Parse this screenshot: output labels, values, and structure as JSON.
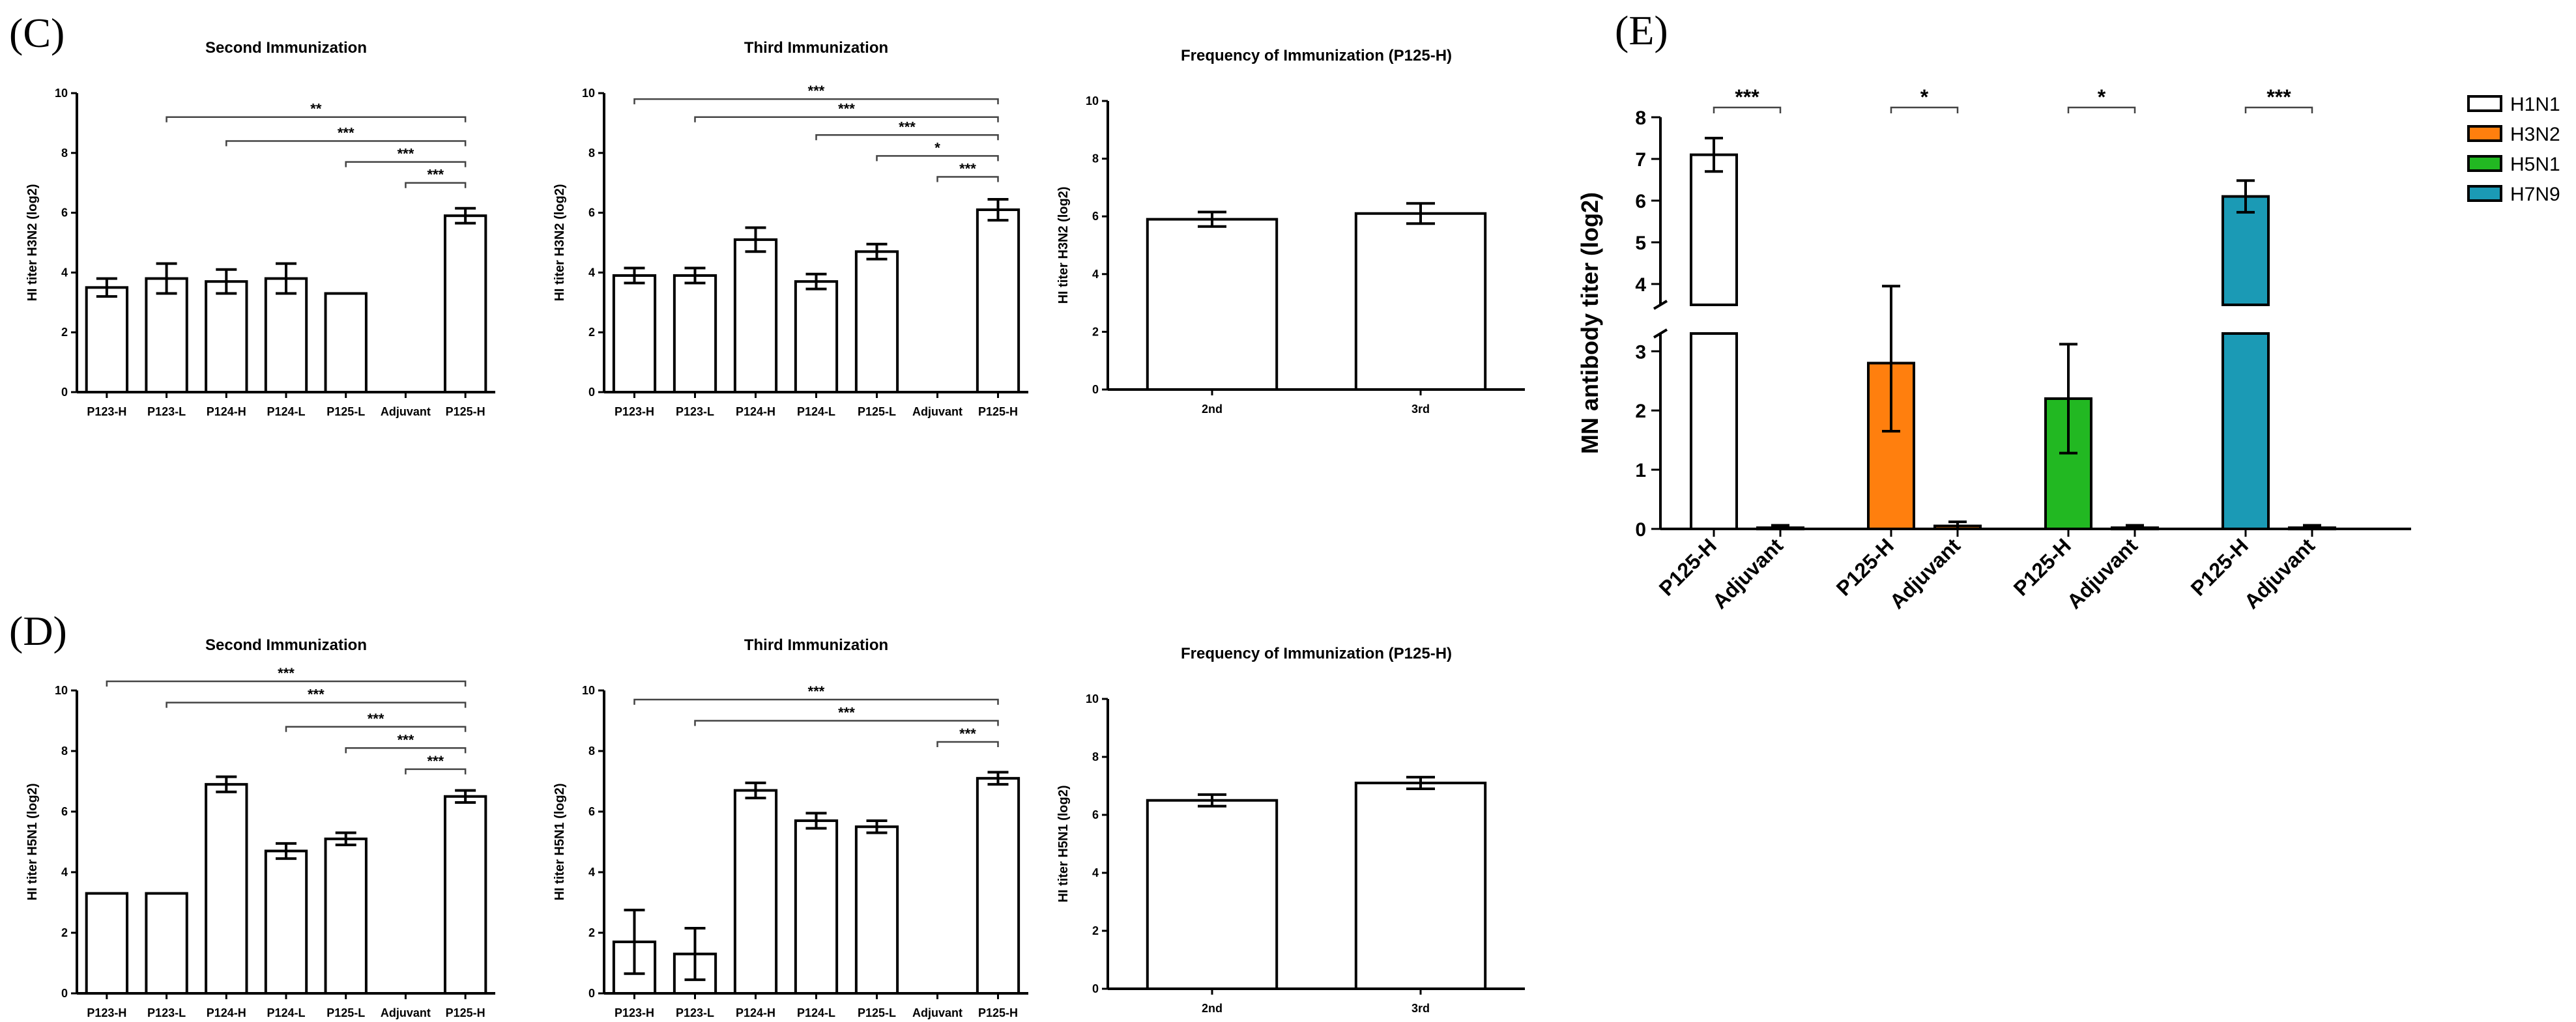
{
  "panel_labels": {
    "c": "(C)",
    "d": "(D)",
    "e": "(E)"
  },
  "chart_data": [
    {
      "id": "c1",
      "type": "bar",
      "title": "Second Immunization",
      "ylabel": "HI titer H3N2 (log2)",
      "ylim": [
        0,
        10
      ],
      "yticks": [
        0,
        2,
        4,
        6,
        8,
        10
      ],
      "categories": [
        "P123-H",
        "P123-L",
        "P124-H",
        "P124-L",
        "P125-L",
        "Adjuvant",
        "P125-H"
      ],
      "values": [
        3.5,
        3.8,
        3.7,
        3.8,
        3.3,
        0,
        5.9
      ],
      "errors": [
        0.3,
        0.5,
        0.4,
        0.5,
        0,
        0,
        0.25
      ],
      "significance": [
        {
          "from": 1,
          "to": 6,
          "label": "**",
          "y": 9.2
        },
        {
          "from": 2,
          "to": 6,
          "label": "***",
          "y": 8.4
        },
        {
          "from": 4,
          "to": 6,
          "label": "***",
          "y": 7.7
        },
        {
          "from": 5,
          "to": 6,
          "label": "***",
          "y": 7.0
        }
      ]
    },
    {
      "id": "c2",
      "type": "bar",
      "title": "Third Immunization",
      "ylabel": "HI titer H3N2 (log2)",
      "ylim": [
        0,
        10
      ],
      "yticks": [
        0,
        2,
        4,
        6,
        8,
        10
      ],
      "categories": [
        "P123-H",
        "P123-L",
        "P124-H",
        "P124-L",
        "P125-L",
        "Adjuvant",
        "P125-H"
      ],
      "values": [
        3.9,
        3.9,
        5.1,
        3.7,
        4.7,
        0,
        6.1
      ],
      "errors": [
        0.25,
        0.25,
        0.4,
        0.25,
        0.25,
        0,
        0.35
      ],
      "significance": [
        {
          "from": 0,
          "to": 6,
          "label": "***",
          "y": 9.8
        },
        {
          "from": 1,
          "to": 6,
          "label": "***",
          "y": 9.2
        },
        {
          "from": 3,
          "to": 6,
          "label": "***",
          "y": 8.6
        },
        {
          "from": 4,
          "to": 6,
          "label": "*",
          "y": 7.9
        },
        {
          "from": 5,
          "to": 6,
          "label": "***",
          "y": 7.2
        }
      ]
    },
    {
      "id": "c3",
      "type": "bar",
      "title": "Frequency of Immunization (P125-H)",
      "ylabel": "HI titer H3N2 (log2)",
      "ylim": [
        0,
        10
      ],
      "yticks": [
        0,
        2,
        4,
        6,
        8,
        10
      ],
      "categories": [
        "2nd",
        "3rd"
      ],
      "values": [
        5.9,
        6.1
      ],
      "errors": [
        0.25,
        0.35
      ],
      "significance": []
    },
    {
      "id": "d1",
      "type": "bar",
      "title": "Second Immunization",
      "ylabel": "HI titer H5N1 (log2)",
      "ylim": [
        0,
        10
      ],
      "yticks": [
        0,
        2,
        4,
        6,
        8,
        10
      ],
      "categories": [
        "P123-H",
        "P123-L",
        "P124-H",
        "P124-L",
        "P125-L",
        "Adjuvant",
        "P125-H"
      ],
      "values": [
        3.3,
        3.3,
        6.9,
        4.7,
        5.1,
        0,
        6.5
      ],
      "errors": [
        0,
        0,
        0.25,
        0.25,
        0.2,
        0,
        0.2
      ],
      "significance": [
        {
          "from": 0,
          "to": 6,
          "label": "***",
          "y": 10.3
        },
        {
          "from": 1,
          "to": 6,
          "label": "***",
          "y": 9.6
        },
        {
          "from": 3,
          "to": 6,
          "label": "***",
          "y": 8.8
        },
        {
          "from": 4,
          "to": 6,
          "label": "***",
          "y": 8.1
        },
        {
          "from": 5,
          "to": 6,
          "label": "***",
          "y": 7.4
        }
      ]
    },
    {
      "id": "d2",
      "type": "bar",
      "title": "Third Immunization",
      "ylabel": "HI titer H5N1 (log2)",
      "ylim": [
        0,
        10
      ],
      "yticks": [
        0,
        2,
        4,
        6,
        8,
        10
      ],
      "categories": [
        "P123-H",
        "P123-L",
        "P124-H",
        "P124-L",
        "P125-L",
        "Adjuvant",
        "P125-H"
      ],
      "values": [
        1.7,
        1.3,
        6.7,
        5.7,
        5.5,
        0,
        7.1
      ],
      "errors": [
        1.05,
        0.85,
        0.25,
        0.25,
        0.2,
        0,
        0.2
      ],
      "significance": [
        {
          "from": 0,
          "to": 6,
          "label": "***",
          "y": 9.7
        },
        {
          "from": 1,
          "to": 6,
          "label": "***",
          "y": 9.0
        },
        {
          "from": 5,
          "to": 6,
          "label": "***",
          "y": 8.3
        }
      ]
    },
    {
      "id": "d3",
      "type": "bar",
      "title": "Frequency of Immunization (P125-H)",
      "ylabel": "HI titer H5N1 (log2)",
      "ylim": [
        0,
        10
      ],
      "yticks": [
        0,
        2,
        4,
        6,
        8,
        10
      ],
      "categories": [
        "2nd",
        "3rd"
      ],
      "values": [
        6.5,
        7.1
      ],
      "errors": [
        0.2,
        0.2
      ],
      "significance": []
    },
    {
      "id": "e",
      "type": "bar",
      "ylabel": "MN antibody titer (log2)",
      "ylim": [
        0,
        8
      ],
      "axis_break": [
        3.3,
        3.5
      ],
      "yticks": [
        0,
        1,
        2,
        3,
        4,
        5,
        6,
        7,
        8
      ],
      "groups": [
        {
          "strain": "H1N1",
          "color": "#ffffff",
          "bars": [
            {
              "label": "P125-H",
              "value": 7.1,
              "error": 0.4
            },
            {
              "label": "Adjuvant",
              "value": 0.02,
              "error": 0.04
            }
          ],
          "sig": "***"
        },
        {
          "strain": "H3N2",
          "color": "#ff7f0e",
          "bars": [
            {
              "label": "P125-H",
              "value": 2.8,
              "error": 1.15
            },
            {
              "label": "Adjuvant",
              "value": 0.05,
              "error": 0.07
            }
          ],
          "sig": "*"
        },
        {
          "strain": "H5N1",
          "color": "#22b822",
          "bars": [
            {
              "label": "P125-H",
              "value": 2.2,
              "error": 0.92
            },
            {
              "label": "Adjuvant",
              "value": 0.02,
              "error": 0.04
            }
          ],
          "sig": "*"
        },
        {
          "strain": "H7N9",
          "color": "#1b9ab5",
          "bars": [
            {
              "label": "P125-H",
              "value": 6.1,
              "error": 0.38
            },
            {
              "label": "Adjuvant",
              "value": 0.02,
              "error": 0.04
            }
          ],
          "sig": "***"
        }
      ],
      "legend": [
        "H1N1",
        "H3N2",
        "H5N1",
        "H7N9"
      ]
    }
  ]
}
